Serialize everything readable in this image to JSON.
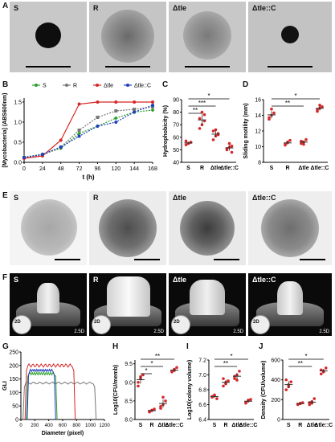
{
  "panels": {
    "A": {
      "letter": "A",
      "labels": [
        "S",
        "R",
        "Δtle",
        "Δtle::C"
      ]
    },
    "B": {
      "letter": "B"
    },
    "C": {
      "letter": "C"
    },
    "D": {
      "letter": "D"
    },
    "E": {
      "letter": "E",
      "labels": [
        "S",
        "R",
        "Δtle",
        "Δtle::C"
      ]
    },
    "F": {
      "letter": "F",
      "labels": [
        "S",
        "R",
        "Δtle",
        "Δtle::C"
      ],
      "inset_2d": "2D",
      "inset_25d": "2.5D"
    },
    "G": {
      "letter": "G"
    },
    "H": {
      "letter": "H"
    },
    "I": {
      "letter": "I"
    },
    "J": {
      "letter": "J"
    }
  },
  "colors": {
    "S": "#2ca02c",
    "R": "#777777",
    "tle": "#d62728",
    "tleC": "#1f3fbf"
  },
  "chart_data": [
    {
      "id": "B",
      "type": "line",
      "xlabel": "t (h)",
      "ylabel": "[Mycobacteria] (ABS600nm)",
      "x": [
        0,
        24,
        48,
        72,
        96,
        120,
        144,
        168
      ],
      "xticks": [
        "0",
        "24",
        "48",
        "72",
        "96",
        "120",
        "144",
        "168"
      ],
      "ylim": [
        0,
        1.6
      ],
      "yticks": [
        "0.0",
        "0.5",
        "1.0",
        "1.5"
      ],
      "legend": [
        "S",
        "R",
        "Δtle",
        "Δtle::C"
      ],
      "series": [
        {
          "name": "S",
          "values": [
            0.13,
            0.2,
            0.35,
            0.72,
            0.9,
            1.1,
            1.25,
            1.3
          ]
        },
        {
          "name": "R",
          "values": [
            0.12,
            0.18,
            0.38,
            0.8,
            1.12,
            1.28,
            1.32,
            1.38
          ]
        },
        {
          "name": "Δtle",
          "values": [
            0.1,
            0.16,
            0.55,
            1.45,
            1.5,
            1.5,
            1.5,
            1.5
          ]
        },
        {
          "name": "Δtle::C",
          "values": [
            0.12,
            0.2,
            0.38,
            0.65,
            0.9,
            1.0,
            1.25,
            1.42
          ]
        }
      ]
    },
    {
      "id": "C",
      "type": "scatter",
      "ylabel": "Hydrophobicity (%)",
      "ylim": [
        40,
        90
      ],
      "yticks": [
        "40",
        "50",
        "60",
        "70",
        "80",
        "90"
      ],
      "categories": [
        "S",
        "R",
        "Δtle",
        "Δtle::C"
      ],
      "points": [
        [
          54,
          55,
          56,
          57,
          55,
          56
        ],
        [
          67,
          70,
          73,
          75,
          80,
          78
        ],
        [
          58,
          61,
          63,
          65,
          66,
          62
        ],
        [
          50,
          52,
          53,
          51,
          55,
          48
        ]
      ],
      "significance": [
        "*",
        "***",
        "**"
      ]
    },
    {
      "id": "D",
      "type": "scatter",
      "ylabel": "Sliding motility (mm)",
      "ylim": [
        8,
        16
      ],
      "yticks": [
        "8",
        "10",
        "12",
        "14",
        "16"
      ],
      "categories": [
        "S",
        "R",
        "Δtle",
        "Δtle::C"
      ],
      "points": [
        [
          13.5,
          14.0,
          14.3,
          13.7,
          14.8
        ],
        [
          10.2,
          10.5,
          10.8,
          10.3,
          10.6
        ],
        [
          10.4,
          10.6,
          10.9,
          10.7,
          10.3
        ],
        [
          14.5,
          14.9,
          15.1,
          14.7,
          15.3
        ]
      ],
      "significance": [
        "*",
        "**"
      ]
    },
    {
      "id": "G",
      "type": "line",
      "xlabel": "Diameter (pixel)",
      "ylabel": "GLI",
      "xlim": [
        0,
        1200
      ],
      "xticks": [
        "0",
        "200",
        "400",
        "600",
        "800",
        "1000",
        "1200"
      ],
      "ylim": [
        0,
        250
      ],
      "yticks": [
        "0",
        "50",
        "100",
        "150",
        "200",
        "250"
      ]
    },
    {
      "id": "H",
      "type": "scatter",
      "ylabel": "Log10(CFU/memb)",
      "ylim": [
        8.0,
        9.6
      ],
      "yticks": [
        "8.0",
        "8.5",
        "9.0",
        "9.5"
      ],
      "categories": [
        "S",
        "R",
        "Δtle",
        "Δtle::C"
      ],
      "points": [
        [
          8.9,
          9.1,
          9.2,
          9.0,
          9.15
        ],
        [
          8.22,
          8.25,
          8.28,
          8.2,
          8.24
        ],
        [
          8.3,
          8.4,
          8.5,
          8.35,
          8.6
        ],
        [
          9.3,
          9.35,
          9.4,
          9.28,
          9.32
        ]
      ],
      "significance": [
        "**",
        "*",
        "*"
      ]
    },
    {
      "id": "I",
      "type": "scatter",
      "ylabel": "Log10(colony volume)",
      "ylim": [
        6.4,
        7.2
      ],
      "yticks": [
        "6.4",
        "6.6",
        "6.8",
        "7.0",
        "7.2"
      ],
      "categories": [
        "S",
        "R",
        "Δtle",
        "Δtle::C"
      ],
      "points": [
        [
          6.7,
          6.72,
          6.68,
          6.71,
          6.73
        ],
        [
          6.85,
          6.88,
          6.92,
          6.95,
          6.9
        ],
        [
          6.95,
          7.0,
          7.05,
          6.98,
          6.93
        ],
        [
          6.63,
          6.65,
          6.67,
          6.62,
          6.66
        ]
      ],
      "significance": [
        "*",
        "**"
      ]
    },
    {
      "id": "J",
      "type": "scatter",
      "ylabel": "Density (CFU/volume)",
      "ylim": [
        0,
        600
      ],
      "yticks": [
        "0",
        "200",
        "400",
        "600"
      ],
      "categories": [
        "S",
        "R",
        "Δtle",
        "Δtle::C"
      ],
      "points": [
        [
          300,
          330,
          380,
          400,
          350
        ],
        [
          150,
          160,
          170,
          155,
          165
        ],
        [
          150,
          180,
          210,
          170,
          165
        ],
        [
          460,
          490,
          520,
          500,
          480
        ]
      ],
      "significance": [
        "*",
        "**"
      ]
    }
  ]
}
